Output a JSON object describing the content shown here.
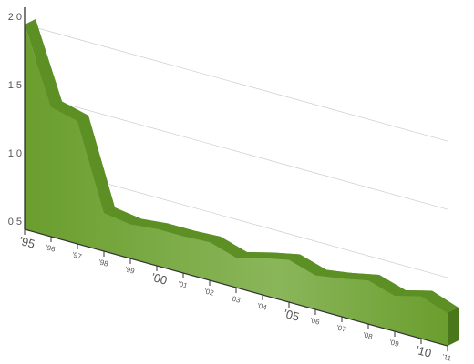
{
  "chart_data": {
    "type": "area3d",
    "categories": [
      "’95",
      "’96",
      "’97",
      "’98",
      "’99",
      "’00",
      "’01",
      "’02",
      "’03",
      "’04",
      "’05",
      "’06",
      "’07",
      "’08",
      "’09",
      "’10",
      "’11"
    ],
    "values": [
      2.0,
      1.45,
      1.4,
      0.78,
      0.75,
      0.77,
      0.77,
      0.78,
      0.72,
      0.77,
      0.81,
      0.75,
      0.78,
      0.82,
      0.76,
      0.81,
      0.74
    ],
    "color": "#6a9e2e",
    "ylim": [
      0.5,
      2.0
    ],
    "yticks": [
      {
        "value": 0.5,
        "label": "0,5"
      },
      {
        "value": 1.0,
        "label": "1,0"
      },
      {
        "value": 1.5,
        "label": "1,5"
      },
      {
        "value": 2.0,
        "label": "2,0"
      }
    ],
    "grid": true
  }
}
